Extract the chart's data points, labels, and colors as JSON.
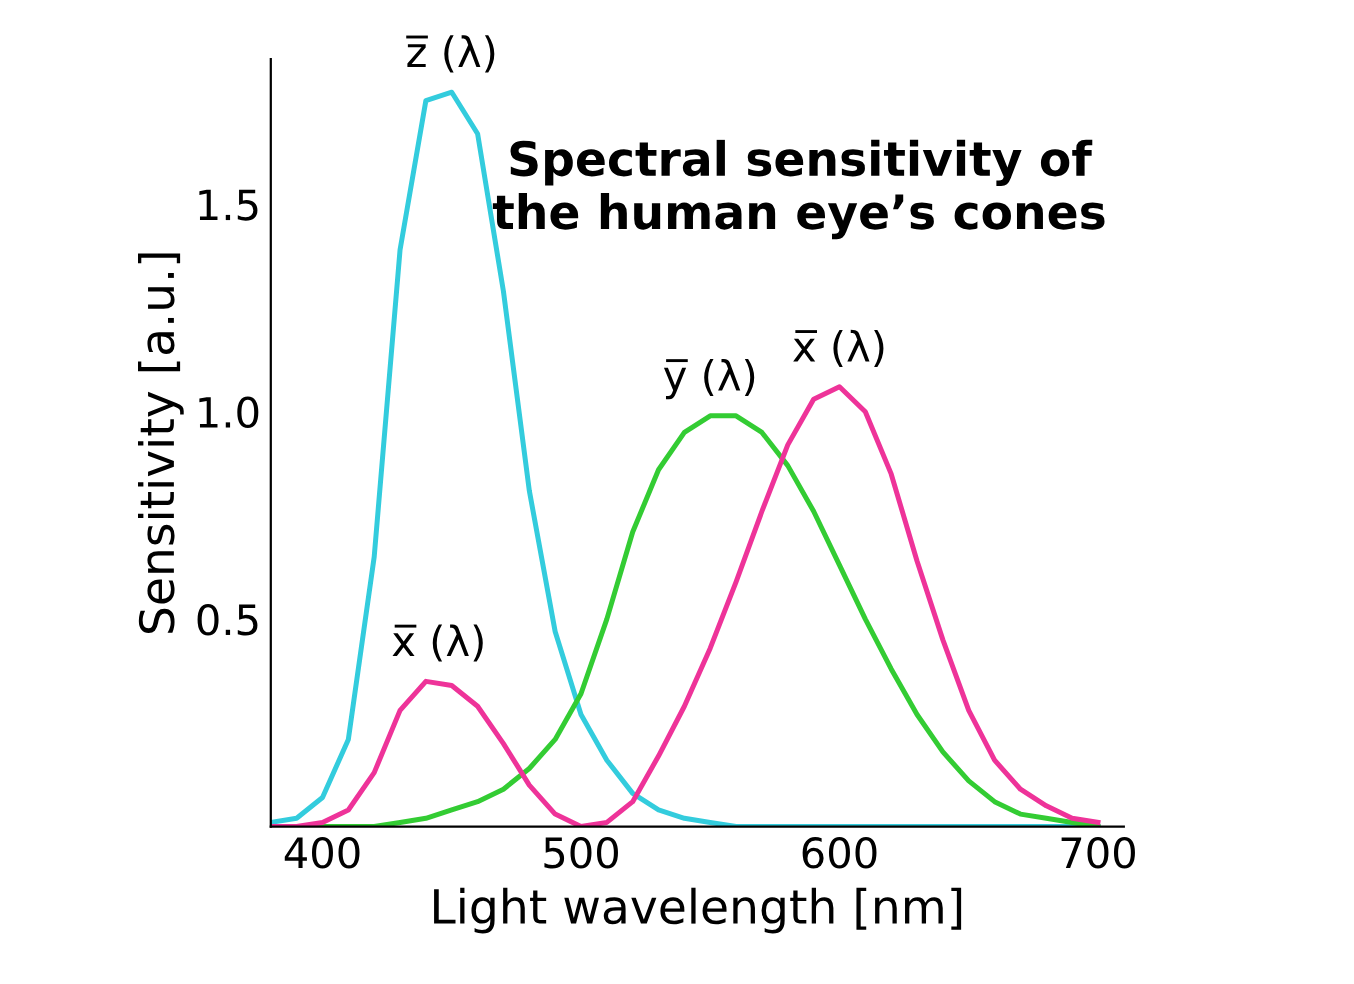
{
  "chart_data": {
    "type": "line",
    "title": "Spectral sensitivity of\nthe human eye’s cones",
    "xlabel": "Light wavelength [nm]",
    "ylabel": "Sensitivity [a.u.]",
    "x": [
      380,
      390,
      400,
      410,
      420,
      430,
      440,
      450,
      460,
      470,
      480,
      490,
      500,
      510,
      520,
      530,
      540,
      550,
      560,
      570,
      580,
      590,
      600,
      610,
      620,
      630,
      640,
      650,
      660,
      670,
      680,
      690,
      700
    ],
    "series": [
      {
        "name": "z̅ (λ)",
        "color": "#33ccdd",
        "values": [
          0.01,
          0.02,
          0.07,
          0.21,
          0.65,
          1.39,
          1.75,
          1.77,
          1.67,
          1.29,
          0.81,
          0.47,
          0.27,
          0.16,
          0.08,
          0.04,
          0.02,
          0.01,
          0.0,
          0.0,
          0.0,
          0.0,
          0.0,
          0.0,
          0.0,
          0.0,
          0.0,
          0.0,
          0.0,
          0.0,
          0.0,
          0.0,
          0.0
        ]
      },
      {
        "name": "y̅ (λ)",
        "color": "#33cc33",
        "values": [
          0.0,
          0.0,
          0.0,
          0.0,
          0.0,
          0.01,
          0.02,
          0.04,
          0.06,
          0.09,
          0.14,
          0.21,
          0.32,
          0.5,
          0.71,
          0.86,
          0.95,
          0.99,
          0.99,
          0.95,
          0.87,
          0.76,
          0.63,
          0.5,
          0.38,
          0.27,
          0.18,
          0.11,
          0.06,
          0.03,
          0.02,
          0.01,
          0.0
        ]
      },
      {
        "name": "x̅ (λ)",
        "color": "#ee3399",
        "values": [
          0.0,
          0.0,
          0.01,
          0.04,
          0.13,
          0.28,
          0.35,
          0.34,
          0.29,
          0.2,
          0.1,
          0.03,
          0.0,
          0.01,
          0.06,
          0.17,
          0.29,
          0.43,
          0.59,
          0.76,
          0.92,
          1.03,
          1.06,
          1.0,
          0.85,
          0.64,
          0.45,
          0.28,
          0.16,
          0.09,
          0.05,
          0.02,
          0.01
        ]
      }
    ],
    "annotations": [
      {
        "text": "x̅ (λ)",
        "x": 445,
        "y": 0.35
      }
    ],
    "xlim": [
      380,
      710
    ],
    "ylim": [
      0,
      1.85
    ],
    "xticks": [
      400,
      500,
      600,
      700
    ],
    "yticks": [
      {
        "value": 0.5,
        "label": "0.5"
      },
      {
        "value": 1.0,
        "label": "1.0"
      },
      {
        "value": 1.5,
        "label": "1.5"
      }
    ],
    "grid": false,
    "legend": false,
    "marker": "none",
    "line_style": "solid"
  }
}
